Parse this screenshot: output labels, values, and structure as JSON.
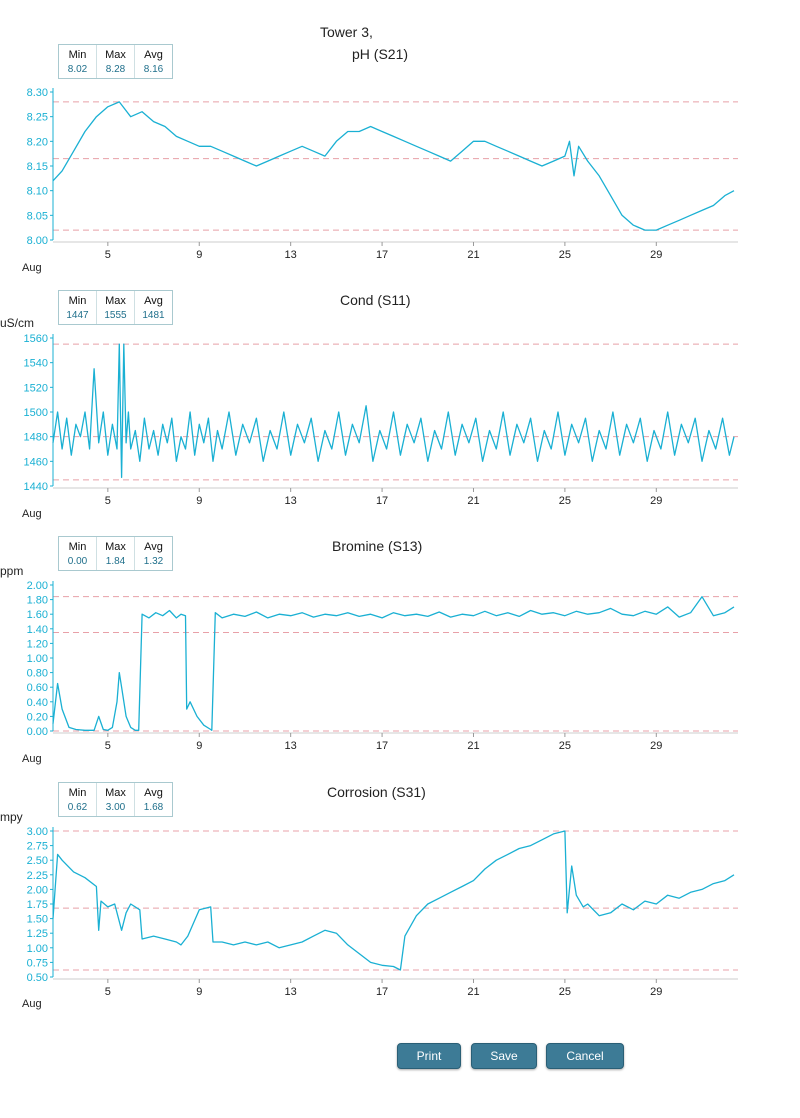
{
  "x_month_label": "Aug",
  "buttons": {
    "print": "Print",
    "save": "Save",
    "cancel": "Cancel"
  },
  "colors": {
    "line": "#1ab0d3",
    "axis": "#1ab0d3",
    "limit": "#e8a0a8",
    "grid": "#e0e0e0"
  },
  "chart_data": [
    {
      "type": "line",
      "title_line1": "Tower 3,",
      "title": "pH (S21)",
      "ylabel": "",
      "stats": {
        "min_label": "Min",
        "max_label": "Max",
        "avg_label": "Avg",
        "min": "8.02",
        "max": "8.28",
        "avg": "8.16"
      },
      "ylim": [
        8.0,
        8.3
      ],
      "yticks": [
        "8.00",
        "8.05",
        "8.10",
        "8.15",
        "8.20",
        "8.25",
        "8.30"
      ],
      "limits": [
        8.02,
        8.165,
        8.28
      ],
      "xlim": [
        2.6,
        32.4
      ],
      "xticks": [
        "5",
        "9",
        "13",
        "17",
        "21",
        "25",
        "29"
      ],
      "series": [
        {
          "name": "pH (S21)",
          "x": [
            2.6,
            3.0,
            3.5,
            4.0,
            4.5,
            5.0,
            5.5,
            6.0,
            6.5,
            7.0,
            7.5,
            8.0,
            8.5,
            9.0,
            9.5,
            10.0,
            10.5,
            11.0,
            11.5,
            12.0,
            12.5,
            13.0,
            13.5,
            14.0,
            14.5,
            15.0,
            15.5,
            16.0,
            16.5,
            17.0,
            17.5,
            18.0,
            18.5,
            19.0,
            19.5,
            20.0,
            20.5,
            21.0,
            21.5,
            22.0,
            22.5,
            23.0,
            23.5,
            24.0,
            24.5,
            25.0,
            25.2,
            25.4,
            25.6,
            26.0,
            26.5,
            27.0,
            27.5,
            28.0,
            28.5,
            29.0,
            29.5,
            30.0,
            30.5,
            31.0,
            31.5,
            32.0,
            32.4
          ],
          "values": [
            8.12,
            8.14,
            8.18,
            8.22,
            8.25,
            8.27,
            8.28,
            8.25,
            8.26,
            8.24,
            8.23,
            8.21,
            8.2,
            8.19,
            8.19,
            8.18,
            8.17,
            8.16,
            8.15,
            8.16,
            8.17,
            8.18,
            8.19,
            8.18,
            8.17,
            8.2,
            8.22,
            8.22,
            8.23,
            8.22,
            8.21,
            8.2,
            8.19,
            8.18,
            8.17,
            8.16,
            8.18,
            8.2,
            8.2,
            8.19,
            8.18,
            8.17,
            8.16,
            8.15,
            8.16,
            8.17,
            8.2,
            8.13,
            8.19,
            8.16,
            8.13,
            8.09,
            8.05,
            8.03,
            8.02,
            8.02,
            8.03,
            8.04,
            8.05,
            8.06,
            8.07,
            8.09,
            8.1
          ]
        }
      ]
    },
    {
      "type": "line",
      "title": "Cond (S11)",
      "ylabel": "uS/cm",
      "stats": {
        "min_label": "Min",
        "max_label": "Max",
        "avg_label": "Avg",
        "min": "1447",
        "max": "1555",
        "avg": "1481"
      },
      "ylim": [
        1440,
        1560
      ],
      "yticks": [
        "1440",
        "1460",
        "1480",
        "1500",
        "1520",
        "1540",
        "1560"
      ],
      "limits": [
        1445,
        1480,
        1555
      ],
      "xlim": [
        2.6,
        32.4
      ],
      "xticks": [
        "5",
        "9",
        "13",
        "17",
        "21",
        "25",
        "29"
      ],
      "series": [
        {
          "name": "Cond (S11)",
          "x": [
            2.6,
            2.8,
            3.0,
            3.2,
            3.4,
            3.6,
            3.8,
            4.0,
            4.2,
            4.4,
            4.6,
            4.8,
            5.0,
            5.2,
            5.4,
            5.5,
            5.6,
            5.7,
            5.8,
            5.9,
            6.0,
            6.2,
            6.4,
            6.6,
            6.8,
            7.0,
            7.2,
            7.4,
            7.6,
            7.8,
            8.0,
            8.2,
            8.4,
            8.6,
            8.8,
            9.0,
            9.2,
            9.4,
            9.6,
            9.8,
            10.0,
            10.3,
            10.6,
            10.9,
            11.2,
            11.5,
            11.8,
            12.1,
            12.4,
            12.7,
            13.0,
            13.3,
            13.6,
            13.9,
            14.2,
            14.5,
            14.8,
            15.1,
            15.4,
            15.7,
            16.0,
            16.3,
            16.6,
            16.9,
            17.2,
            17.5,
            17.8,
            18.1,
            18.4,
            18.7,
            19.0,
            19.3,
            19.6,
            19.9,
            20.2,
            20.5,
            20.8,
            21.1,
            21.4,
            21.7,
            22.0,
            22.3,
            22.6,
            22.9,
            23.2,
            23.5,
            23.8,
            24.1,
            24.4,
            24.7,
            25.0,
            25.3,
            25.6,
            25.9,
            26.2,
            26.5,
            26.8,
            27.1,
            27.4,
            27.7,
            28.0,
            28.3,
            28.6,
            28.9,
            29.2,
            29.5,
            29.8,
            30.1,
            30.4,
            30.7,
            31.0,
            31.3,
            31.6,
            31.9,
            32.2,
            32.4
          ],
          "values": [
            1475,
            1500,
            1470,
            1495,
            1465,
            1490,
            1480,
            1500,
            1470,
            1535,
            1475,
            1500,
            1465,
            1490,
            1470,
            1555,
            1447,
            1555,
            1475,
            1500,
            1470,
            1485,
            1460,
            1495,
            1470,
            1485,
            1465,
            1490,
            1475,
            1495,
            1460,
            1480,
            1470,
            1500,
            1465,
            1490,
            1475,
            1495,
            1460,
            1485,
            1470,
            1500,
            1465,
            1490,
            1475,
            1495,
            1460,
            1485,
            1470,
            1500,
            1465,
            1490,
            1475,
            1495,
            1460,
            1485,
            1470,
            1500,
            1465,
            1490,
            1475,
            1505,
            1460,
            1485,
            1470,
            1500,
            1465,
            1490,
            1475,
            1495,
            1460,
            1485,
            1470,
            1500,
            1465,
            1490,
            1475,
            1495,
            1460,
            1485,
            1470,
            1500,
            1465,
            1490,
            1475,
            1495,
            1460,
            1485,
            1470,
            1500,
            1465,
            1490,
            1475,
            1495,
            1460,
            1485,
            1470,
            1500,
            1465,
            1490,
            1475,
            1495,
            1460,
            1485,
            1470,
            1500,
            1465,
            1490,
            1475,
            1495,
            1460,
            1485,
            1470,
            1495,
            1465,
            1480
          ]
        }
      ]
    },
    {
      "type": "line",
      "title": "Bromine (S13)",
      "ylabel": "ppm",
      "stats": {
        "min_label": "Min",
        "max_label": "Max",
        "avg_label": "Avg",
        "min": "0.00",
        "max": "1.84",
        "avg": "1.32"
      },
      "ylim": [
        0.0,
        2.0
      ],
      "yticks": [
        "0.00",
        "0.20",
        "0.40",
        "0.60",
        "0.80",
        "1.00",
        "1.20",
        "1.40",
        "1.60",
        "1.80",
        "2.00"
      ],
      "limits": [
        0.0,
        1.35,
        1.84
      ],
      "xlim": [
        2.6,
        32.4
      ],
      "xticks": [
        "5",
        "9",
        "13",
        "17",
        "21",
        "25",
        "29"
      ],
      "series": [
        {
          "name": "Bromine (S13)",
          "x": [
            2.6,
            2.8,
            3.0,
            3.3,
            3.6,
            4.0,
            4.4,
            4.6,
            4.8,
            5.0,
            5.2,
            5.4,
            5.5,
            5.6,
            5.8,
            6.0,
            6.2,
            6.35,
            6.5,
            6.8,
            7.1,
            7.4,
            7.7,
            8.0,
            8.2,
            8.4,
            8.45,
            8.6,
            8.9,
            9.2,
            9.5,
            9.55,
            9.7,
            10.0,
            10.5,
            11.0,
            11.5,
            12.0,
            12.5,
            13.0,
            13.5,
            14.0,
            14.5,
            15.0,
            15.5,
            16.0,
            16.5,
            17.0,
            17.5,
            18.0,
            18.5,
            19.0,
            19.5,
            20.0,
            20.5,
            21.0,
            21.5,
            22.0,
            22.5,
            23.0,
            23.5,
            24.0,
            24.5,
            25.0,
            25.5,
            26.0,
            26.5,
            27.0,
            27.5,
            28.0,
            28.5,
            29.0,
            29.5,
            30.0,
            30.5,
            31.0,
            31.5,
            32.0,
            32.4
          ],
          "values": [
            0.1,
            0.65,
            0.3,
            0.05,
            0.02,
            0.01,
            0.01,
            0.2,
            0.02,
            0.01,
            0.05,
            0.4,
            0.8,
            0.6,
            0.2,
            0.05,
            0.01,
            0.01,
            1.6,
            1.55,
            1.62,
            1.58,
            1.65,
            1.55,
            1.6,
            1.58,
            0.3,
            0.4,
            0.2,
            0.08,
            0.02,
            0.01,
            1.62,
            1.55,
            1.6,
            1.57,
            1.63,
            1.55,
            1.6,
            1.58,
            1.62,
            1.56,
            1.6,
            1.58,
            1.62,
            1.57,
            1.6,
            1.55,
            1.62,
            1.58,
            1.6,
            1.57,
            1.63,
            1.56,
            1.6,
            1.58,
            1.64,
            1.58,
            1.62,
            1.57,
            1.65,
            1.6,
            1.62,
            1.58,
            1.64,
            1.6,
            1.62,
            1.68,
            1.6,
            1.58,
            1.64,
            1.6,
            1.7,
            1.56,
            1.62,
            1.84,
            1.58,
            1.62,
            1.7
          ]
        }
      ]
    },
    {
      "type": "line",
      "title": "Corrosion (S31)",
      "ylabel": "mpy",
      "stats": {
        "min_label": "Min",
        "max_label": "Max",
        "avg_label": "Avg",
        "min": "0.62",
        "max": "3.00",
        "avg": "1.68"
      },
      "ylim": [
        0.5,
        3.0
      ],
      "yticks": [
        "0.50",
        "0.75",
        "1.00",
        "1.25",
        "1.50",
        "1.75",
        "2.00",
        "2.25",
        "2.50",
        "2.75",
        "3.00"
      ],
      "limits": [
        0.62,
        1.68,
        3.0
      ],
      "xlim": [
        2.6,
        32.4
      ],
      "xticks": [
        "5",
        "9",
        "13",
        "17",
        "21",
        "25",
        "29"
      ],
      "series": [
        {
          "name": "Corrosion (S31)",
          "x": [
            2.6,
            2.8,
            3.0,
            3.5,
            4.0,
            4.5,
            4.6,
            4.7,
            5.0,
            5.3,
            5.6,
            5.8,
            6.0,
            6.4,
            6.5,
            7.0,
            7.5,
            8.0,
            8.2,
            8.5,
            9.0,
            9.5,
            9.6,
            10.0,
            10.5,
            11.0,
            11.5,
            12.0,
            12.5,
            13.0,
            13.5,
            14.0,
            14.5,
            15.0,
            15.5,
            16.0,
            16.5,
            17.0,
            17.5,
            17.8,
            18.0,
            18.5,
            19.0,
            19.5,
            20.0,
            20.5,
            21.0,
            21.5,
            22.0,
            22.5,
            23.0,
            23.5,
            24.0,
            24.5,
            25.0,
            25.1,
            25.3,
            25.5,
            25.8,
            26.0,
            26.5,
            27.0,
            27.5,
            28.0,
            28.5,
            29.0,
            29.5,
            30.0,
            30.5,
            31.0,
            31.5,
            32.0,
            32.4
          ],
          "values": [
            1.5,
            2.6,
            2.5,
            2.3,
            2.2,
            2.05,
            1.3,
            1.8,
            1.7,
            1.75,
            1.3,
            1.6,
            1.75,
            1.65,
            1.15,
            1.2,
            1.15,
            1.1,
            1.05,
            1.2,
            1.65,
            1.7,
            1.1,
            1.1,
            1.05,
            1.1,
            1.05,
            1.1,
            1.0,
            1.05,
            1.1,
            1.2,
            1.3,
            1.25,
            1.05,
            0.9,
            0.75,
            0.7,
            0.68,
            0.62,
            1.2,
            1.55,
            1.75,
            1.85,
            1.95,
            2.05,
            2.15,
            2.35,
            2.5,
            2.6,
            2.7,
            2.75,
            2.85,
            2.95,
            3.0,
            1.6,
            2.4,
            1.9,
            1.7,
            1.75,
            1.55,
            1.6,
            1.75,
            1.65,
            1.8,
            1.75,
            1.9,
            1.85,
            1.95,
            2.0,
            2.1,
            2.15,
            2.25
          ]
        }
      ]
    }
  ]
}
